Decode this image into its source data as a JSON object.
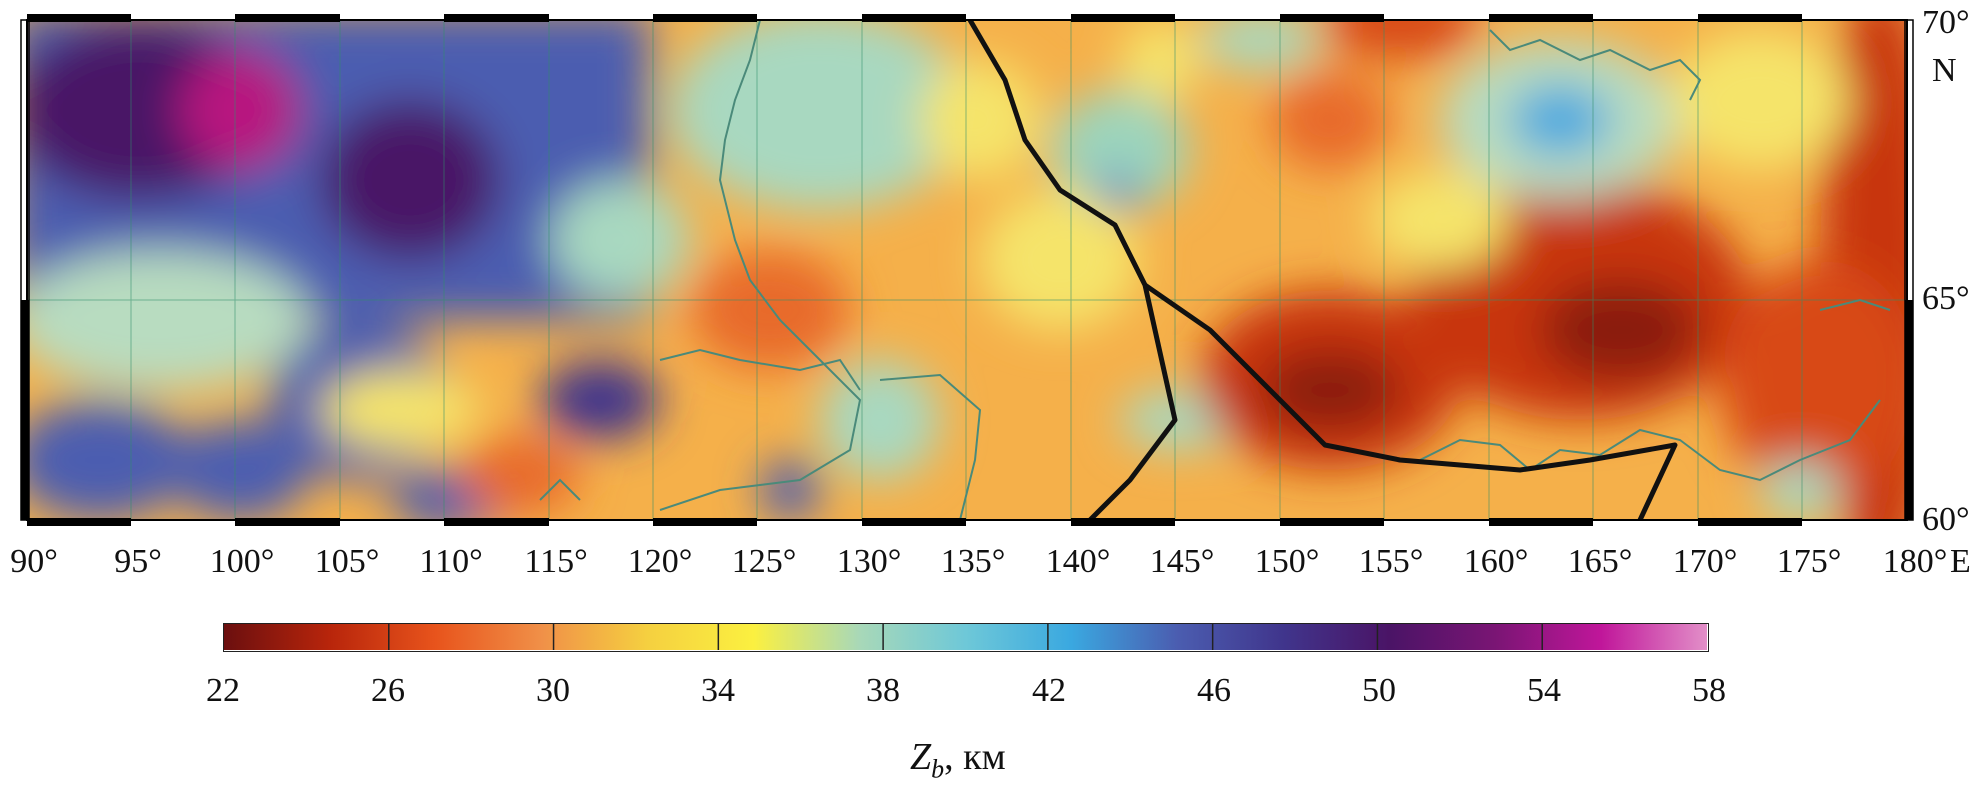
{
  "map": {
    "lon_labels": [
      "90°",
      "95°",
      "100°",
      "105°",
      "110°",
      "115°",
      "120°",
      "125°",
      "130°",
      "135°",
      "140°",
      "145°",
      "150°",
      "155°",
      "160°",
      "165°",
      "170°",
      "175°",
      "180°"
    ],
    "lon_hemisphere": "E",
    "lat_labels": [
      "70°",
      "65°",
      "60°"
    ],
    "lat_hemisphere": "N",
    "lon_range": [
      90,
      180
    ],
    "lat_range": [
      60,
      70
    ],
    "layers": [
      "depth-color-grid",
      "coastlines",
      "rivers",
      "tectonic-boundary-line",
      "graticule"
    ]
  },
  "colorbar": {
    "ticks": [
      "22",
      "26",
      "30",
      "34",
      "38",
      "42",
      "46",
      "50",
      "54",
      "58"
    ],
    "range": [
      22,
      58
    ],
    "colors": [
      "#6b0f0f",
      "#b8250b",
      "#e8541c",
      "#f09048",
      "#f5d040",
      "#fbf040",
      "#a8d8b8",
      "#6ec8d8",
      "#3aa8e0",
      "#4b5db0",
      "#40358c",
      "#4a1466",
      "#7a1574",
      "#c0169a",
      "#e28fc8"
    ]
  },
  "unit": {
    "symbol": "Z",
    "subscript": "b",
    "suffix": ", км"
  }
}
